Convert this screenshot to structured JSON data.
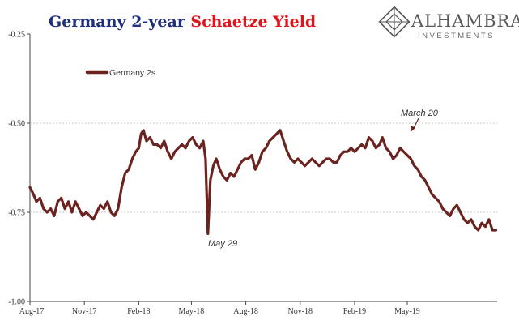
{
  "title": {
    "part1": "Germany 2-year ",
    "part2": "Schaetze Yield",
    "color1": "#1f2f7a",
    "color2": "#e3131b"
  },
  "logo": {
    "name": "ALHAMBRA",
    "sub": "INVESTMENTS",
    "icon": "alhambra-diamond-logo-icon"
  },
  "chart_data": {
    "type": "line",
    "title": "Germany 2-year Schaetze Yield",
    "xlabel": "",
    "ylabel": "",
    "ylim": [
      -1.0,
      -0.25
    ],
    "y_ticks": [
      -0.25,
      -0.5,
      -0.75,
      -1.0
    ],
    "y_tick_labels": [
      "-0.25",
      "-0.50",
      "-0.75",
      "-1.00"
    ],
    "gridlines": [
      -0.5,
      -0.75
    ],
    "x_range": [
      "2017-08-01",
      "2019-09-30"
    ],
    "x_ticks": [
      "2017-08-01",
      "2017-11-01",
      "2018-02-01",
      "2018-05-01",
      "2018-08-01",
      "2018-11-01",
      "2019-02-01",
      "2019-05-01"
    ],
    "x_tick_labels": [
      "Aug-17",
      "Nov-17",
      "Feb-18",
      "May-18",
      "Aug-18",
      "Nov-18",
      "Feb-19",
      "May-19"
    ],
    "legend_position": "top-left",
    "series": [
      {
        "name": "Germany 2s",
        "color": "#6b2320",
        "points": [
          [
            "2017-08-01",
            -0.68
          ],
          [
            "2017-08-07",
            -0.7
          ],
          [
            "2017-08-12",
            -0.72
          ],
          [
            "2017-08-18",
            -0.71
          ],
          [
            "2017-08-24",
            -0.74
          ],
          [
            "2017-08-30",
            -0.75
          ],
          [
            "2017-09-05",
            -0.74
          ],
          [
            "2017-09-11",
            -0.76
          ],
          [
            "2017-09-17",
            -0.72
          ],
          [
            "2017-09-23",
            -0.71
          ],
          [
            "2017-09-29",
            -0.74
          ],
          [
            "2017-10-05",
            -0.72
          ],
          [
            "2017-10-11",
            -0.75
          ],
          [
            "2017-10-17",
            -0.72
          ],
          [
            "2017-10-23",
            -0.74
          ],
          [
            "2017-10-29",
            -0.76
          ],
          [
            "2017-11-04",
            -0.75
          ],
          [
            "2017-11-10",
            -0.76
          ],
          [
            "2017-11-16",
            -0.77
          ],
          [
            "2017-11-22",
            -0.75
          ],
          [
            "2017-11-28",
            -0.73
          ],
          [
            "2017-12-04",
            -0.74
          ],
          [
            "2017-12-10",
            -0.72
          ],
          [
            "2017-12-16",
            -0.75
          ],
          [
            "2017-12-22",
            -0.76
          ],
          [
            "2017-12-28",
            -0.74
          ],
          [
            "2018-01-03",
            -0.68
          ],
          [
            "2018-01-09",
            -0.64
          ],
          [
            "2018-01-15",
            -0.63
          ],
          [
            "2018-01-21",
            -0.6
          ],
          [
            "2018-01-27",
            -0.58
          ],
          [
            "2018-02-01",
            -0.57
          ],
          [
            "2018-02-05",
            -0.53
          ],
          [
            "2018-02-09",
            -0.52
          ],
          [
            "2018-02-14",
            -0.55
          ],
          [
            "2018-02-20",
            -0.54
          ],
          [
            "2018-02-26",
            -0.56
          ],
          [
            "2018-03-04",
            -0.56
          ],
          [
            "2018-03-10",
            -0.57
          ],
          [
            "2018-03-16",
            -0.55
          ],
          [
            "2018-03-22",
            -0.58
          ],
          [
            "2018-03-28",
            -0.6
          ],
          [
            "2018-04-03",
            -0.58
          ],
          [
            "2018-04-09",
            -0.57
          ],
          [
            "2018-04-15",
            -0.56
          ],
          [
            "2018-04-21",
            -0.57
          ],
          [
            "2018-04-27",
            -0.55
          ],
          [
            "2018-05-03",
            -0.54
          ],
          [
            "2018-05-09",
            -0.56
          ],
          [
            "2018-05-15",
            -0.57
          ],
          [
            "2018-05-21",
            -0.55
          ],
          [
            "2018-05-25",
            -0.6
          ],
          [
            "2018-05-29",
            -0.81
          ],
          [
            "2018-06-02",
            -0.66
          ],
          [
            "2018-06-07",
            -0.62
          ],
          [
            "2018-06-12",
            -0.6
          ],
          [
            "2018-06-18",
            -0.63
          ],
          [
            "2018-06-24",
            -0.65
          ],
          [
            "2018-06-30",
            -0.66
          ],
          [
            "2018-07-06",
            -0.64
          ],
          [
            "2018-07-12",
            -0.65
          ],
          [
            "2018-07-18",
            -0.63
          ],
          [
            "2018-07-24",
            -0.61
          ],
          [
            "2018-07-30",
            -0.6
          ],
          [
            "2018-08-05",
            -0.6
          ],
          [
            "2018-08-11",
            -0.59
          ],
          [
            "2018-08-17",
            -0.63
          ],
          [
            "2018-08-23",
            -0.61
          ],
          [
            "2018-08-29",
            -0.58
          ],
          [
            "2018-09-04",
            -0.57
          ],
          [
            "2018-09-10",
            -0.55
          ],
          [
            "2018-09-16",
            -0.54
          ],
          [
            "2018-09-22",
            -0.53
          ],
          [
            "2018-09-28",
            -0.52
          ],
          [
            "2018-10-04",
            -0.55
          ],
          [
            "2018-10-10",
            -0.58
          ],
          [
            "2018-10-16",
            -0.6
          ],
          [
            "2018-10-22",
            -0.61
          ],
          [
            "2018-10-28",
            -0.6
          ],
          [
            "2018-11-03",
            -0.61
          ],
          [
            "2018-11-09",
            -0.62
          ],
          [
            "2018-11-15",
            -0.61
          ],
          [
            "2018-11-21",
            -0.6
          ],
          [
            "2018-11-27",
            -0.61
          ],
          [
            "2018-12-03",
            -0.62
          ],
          [
            "2018-12-09",
            -0.61
          ],
          [
            "2018-12-15",
            -0.6
          ],
          [
            "2018-12-21",
            -0.6
          ],
          [
            "2018-12-27",
            -0.61
          ],
          [
            "2019-01-02",
            -0.61
          ],
          [
            "2019-01-08",
            -0.59
          ],
          [
            "2019-01-14",
            -0.58
          ],
          [
            "2019-01-20",
            -0.58
          ],
          [
            "2019-01-26",
            -0.57
          ],
          [
            "2019-02-01",
            -0.58
          ],
          [
            "2019-02-07",
            -0.57
          ],
          [
            "2019-02-13",
            -0.56
          ],
          [
            "2019-02-19",
            -0.57
          ],
          [
            "2019-02-25",
            -0.54
          ],
          [
            "2019-03-03",
            -0.55
          ],
          [
            "2019-03-09",
            -0.57
          ],
          [
            "2019-03-15",
            -0.56
          ],
          [
            "2019-03-20",
            -0.54
          ],
          [
            "2019-03-26",
            -0.57
          ],
          [
            "2019-04-01",
            -0.58
          ],
          [
            "2019-04-07",
            -0.6
          ],
          [
            "2019-04-13",
            -0.59
          ],
          [
            "2019-04-19",
            -0.57
          ],
          [
            "2019-04-25",
            -0.58
          ],
          [
            "2019-05-01",
            -0.59
          ],
          [
            "2019-05-07",
            -0.6
          ],
          [
            "2019-05-13",
            -0.62
          ],
          [
            "2019-05-19",
            -0.63
          ],
          [
            "2019-05-25",
            -0.65
          ],
          [
            "2019-05-31",
            -0.66
          ],
          [
            "2019-06-06",
            -0.68
          ],
          [
            "2019-06-12",
            -0.7
          ],
          [
            "2019-06-18",
            -0.71
          ],
          [
            "2019-06-24",
            -0.72
          ],
          [
            "2019-06-30",
            -0.74
          ],
          [
            "2019-07-06",
            -0.75
          ],
          [
            "2019-07-12",
            -0.76
          ],
          [
            "2019-07-18",
            -0.74
          ],
          [
            "2019-07-24",
            -0.73
          ],
          [
            "2019-07-30",
            -0.75
          ],
          [
            "2019-08-05",
            -0.77
          ],
          [
            "2019-08-11",
            -0.78
          ],
          [
            "2019-08-17",
            -0.77
          ],
          [
            "2019-08-23",
            -0.79
          ],
          [
            "2019-08-29",
            -0.8
          ],
          [
            "2019-09-04",
            -0.78
          ],
          [
            "2019-09-10",
            -0.79
          ],
          [
            "2019-09-16",
            -0.77
          ],
          [
            "2019-09-22",
            -0.8
          ],
          [
            "2019-09-28",
            -0.8
          ]
        ]
      }
    ],
    "annotations": [
      {
        "text": "May 29",
        "x": "2018-05-29",
        "y": -0.81
      },
      {
        "text": "March 20",
        "x": "2019-03-20",
        "y": -0.54
      }
    ]
  }
}
